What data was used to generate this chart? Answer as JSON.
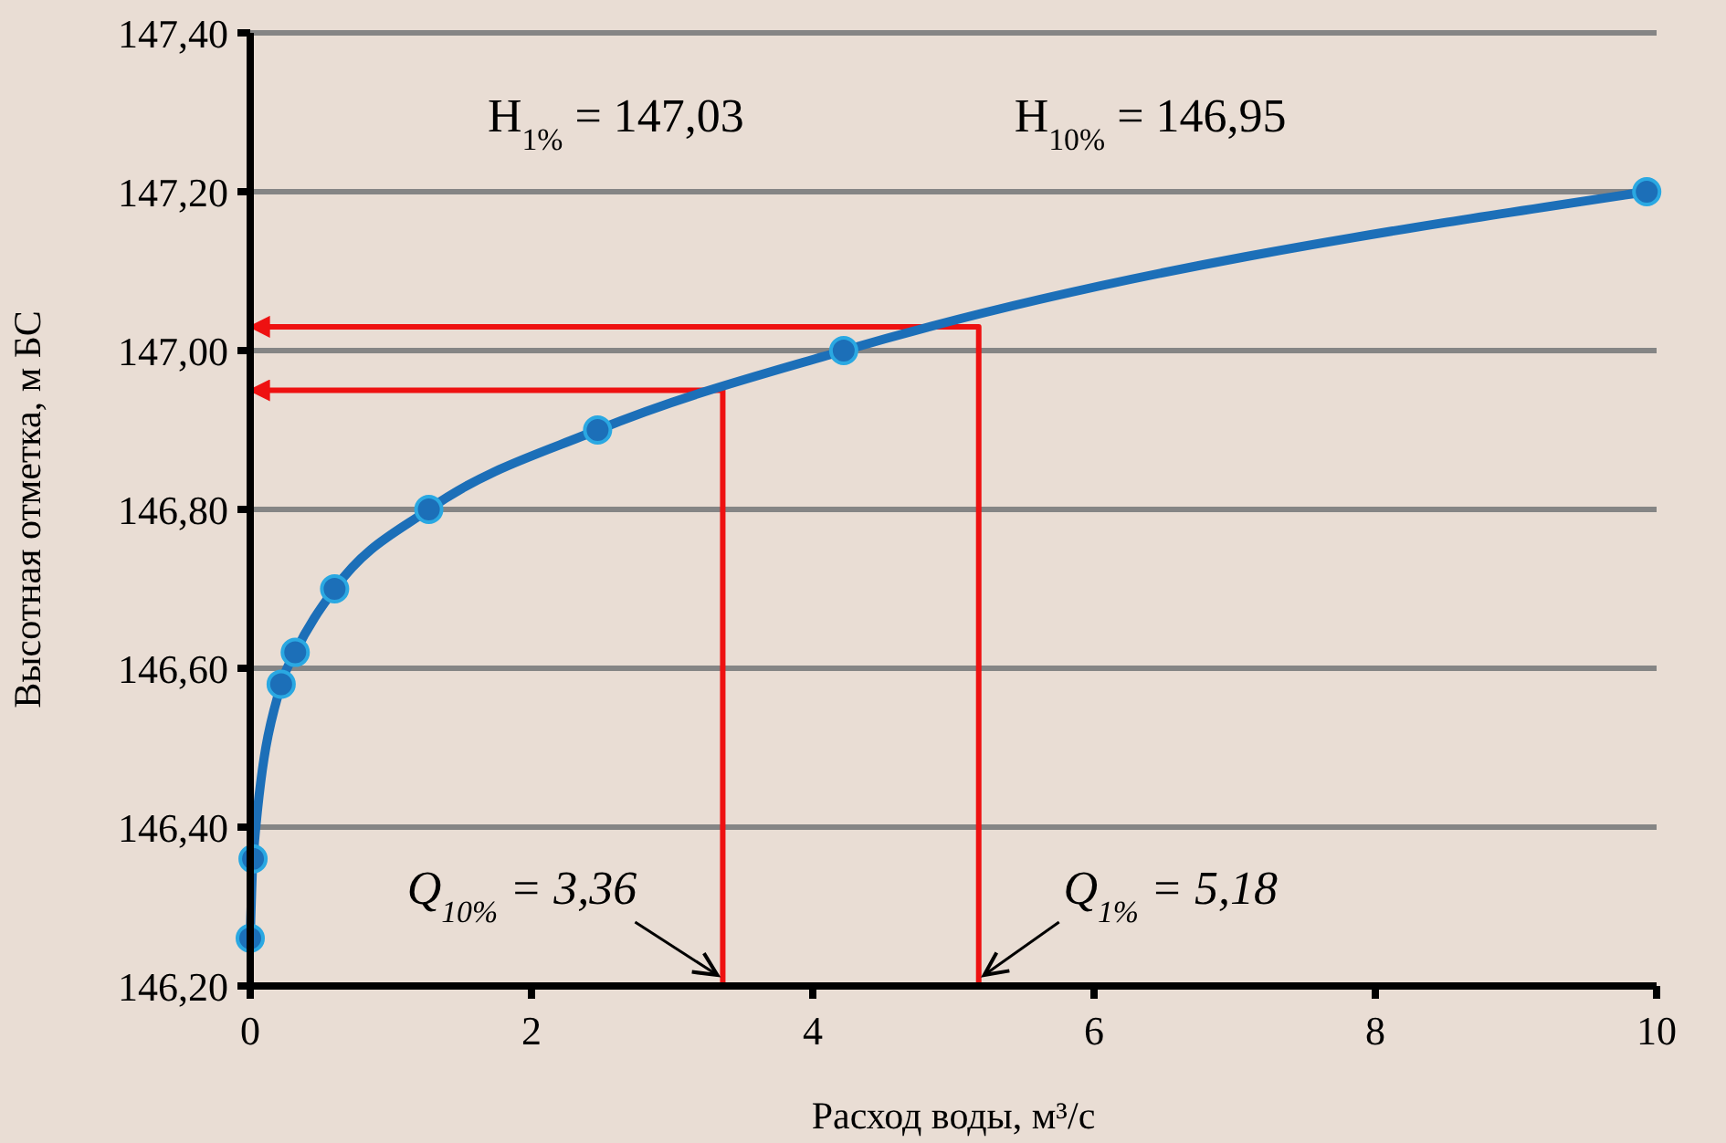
{
  "chart_data": {
    "type": "line",
    "xlabel": "Расход воды, м³/с",
    "ylabel": "Высотная отметка, м БС",
    "xlim": [
      0,
      10
    ],
    "xticks": [
      0,
      2,
      4,
      6,
      8,
      10
    ],
    "ylim": [
      146.2,
      147.4
    ],
    "yticks": [
      {
        "value": 146.2,
        "label": "146,20"
      },
      {
        "value": 146.4,
        "label": "146,40"
      },
      {
        "value": 146.6,
        "label": "146,60"
      },
      {
        "value": 146.8,
        "label": "146,80"
      },
      {
        "value": 147.0,
        "label": "147,00"
      },
      {
        "value": 147.2,
        "label": "147,20"
      },
      {
        "value": 147.4,
        "label": "147,40"
      }
    ],
    "grid": "y",
    "marker": "circle",
    "line_style": "solid",
    "series": [
      {
        "color": "#1c6fb8",
        "x": [
          0,
          0.02,
          0.22,
          0.32,
          0.6,
          1.27,
          2.47,
          4.22,
          9.93
        ],
        "values": [
          146.26,
          146.36,
          146.58,
          146.62,
          146.7,
          146.8,
          146.9,
          147.0,
          147.2
        ]
      },
      {
        "color": "#ee1111",
        "marker": "none",
        "x": [
          0,
          3.36,
          3.36
        ],
        "values": [
          146.95,
          146.95,
          146.2
        ]
      },
      {
        "color": "#ee1111",
        "marker": "none",
        "x": [
          0,
          5.18,
          5.18
        ],
        "values": [
          147.03,
          147.03,
          146.2
        ]
      }
    ],
    "annotations": [
      "H$_{1%}$ = 147,03",
      "H$_{10%}$ = 146,95",
      {
        "text": "Q$_{10%}$ = 3,36",
        "x": 3.36,
        "y": 146.2
      },
      {
        "text": "Q$_{1%}$ = 5,18",
        "x": 5.18,
        "y": 146.2
      }
    ]
  }
}
